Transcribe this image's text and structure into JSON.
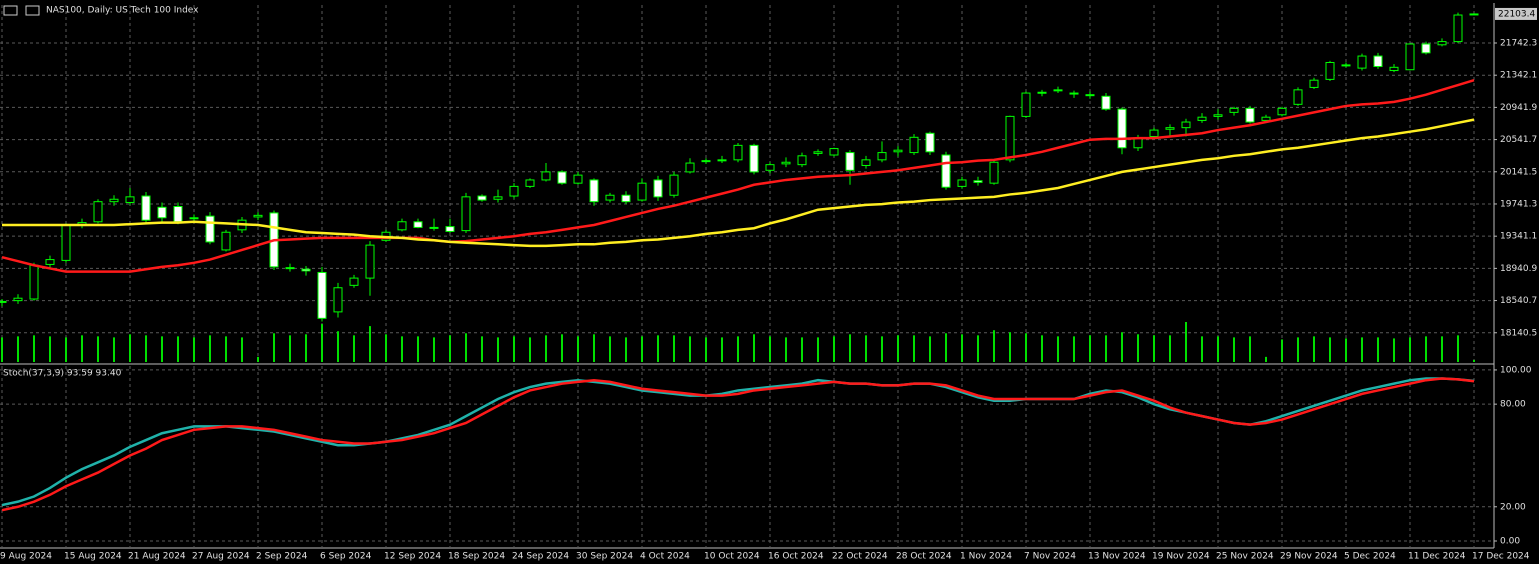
{
  "chart_data": [
    {
      "type": "candlestick",
      "title": "NAS100, Daily: US Tech 100 Index",
      "categories": [
        "9 Aug 2024",
        null,
        null,
        null,
        "15 Aug 2024",
        null,
        null,
        null,
        "21 Aug 2024",
        null,
        null,
        null,
        "27 Aug 2024",
        null,
        null,
        null,
        "2 Sep 2024",
        null,
        null,
        null,
        "6 Sep 2024",
        null,
        null,
        null,
        "12 Sep 2024",
        null,
        null,
        null,
        "18 Sep 2024",
        null,
        null,
        null,
        "24 Sep 2024",
        null,
        null,
        null,
        "30 Sep 2024",
        null,
        null,
        null,
        "4 Oct 2024",
        null,
        null,
        null,
        "10 Oct 2024",
        null,
        null,
        null,
        "16 Oct 2024",
        null,
        null,
        null,
        "22 Oct 2024",
        null,
        null,
        null,
        "28 Oct 2024",
        null,
        null,
        null,
        "1 Nov 2024",
        null,
        null,
        null,
        "7 Nov 2024",
        null,
        null,
        null,
        "13 Nov 2024",
        null,
        null,
        null,
        "19 Nov 2024",
        null,
        null,
        null,
        "25 Nov 2024",
        null,
        null,
        null,
        "29 Nov 2024",
        null,
        null,
        null,
        "5 Dec 2024",
        null,
        null,
        null,
        "11 Dec 2024",
        null,
        null,
        null,
        "17 Dec 2024"
      ],
      "open": [
        18520,
        18540,
        18560,
        18990,
        19040,
        19480,
        19520,
        19770,
        19760,
        19840,
        19700,
        19710,
        19560,
        19590,
        19170,
        19420,
        19580,
        19630,
        18950,
        18930,
        18890,
        18400,
        18730,
        18820,
        19290,
        19420,
        19520,
        19450,
        19460,
        19410,
        19840,
        19800,
        19840,
        19960,
        20040,
        20140,
        20000,
        20040,
        19790,
        19850,
        19790,
        20040,
        19850,
        20140,
        20270,
        20280,
        20290,
        20470,
        20160,
        20240,
        20230,
        20370,
        20350,
        20380,
        20220,
        20290,
        20390,
        20380,
        20620,
        20350,
        19960,
        20030,
        20000,
        20290,
        20830,
        21130,
        21150,
        21120,
        21100,
        21080,
        20920,
        20440,
        20580,
        20670,
        20690,
        20780,
        20830,
        20880,
        20930,
        20780,
        20850,
        20980,
        21190,
        21290,
        21460,
        21430,
        21580,
        21400,
        21410,
        21730,
        21720,
        21760,
        22100
      ],
      "high": [
        18560,
        18620,
        19010,
        19100,
        19500,
        19560,
        19800,
        19850,
        19940,
        19890,
        19760,
        19760,
        19610,
        19640,
        19420,
        19580,
        19640,
        19660,
        19000,
        18970,
        18960,
        18760,
        18860,
        19280,
        19420,
        19560,
        19560,
        19560,
        19560,
        19880,
        19860,
        19920,
        20000,
        20060,
        20250,
        20160,
        20140,
        20060,
        19880,
        19900,
        20060,
        20090,
        20140,
        20310,
        20310,
        20340,
        20500,
        20490,
        20260,
        20320,
        20380,
        20420,
        20440,
        20410,
        20340,
        20520,
        20460,
        20610,
        20640,
        20390,
        20080,
        20080,
        20280,
        20840,
        21140,
        21160,
        21200,
        21150,
        21140,
        21120,
        20940,
        20600,
        20690,
        20730,
        20800,
        20870,
        20920,
        20950,
        20960,
        20850,
        20950,
        21190,
        21310,
        21520,
        21500,
        21610,
        21620,
        21480,
        21740,
        21760,
        21800,
        22120,
        22110
      ],
      "low": [
        18470,
        18500,
        18540,
        18950,
        19010,
        19440,
        19500,
        19720,
        19730,
        19500,
        19520,
        19490,
        19520,
        19240,
        19150,
        19380,
        19540,
        18920,
        18900,
        18850,
        18280,
        18330,
        18700,
        18600,
        19270,
        19400,
        19440,
        19410,
        19380,
        19380,
        19770,
        19760,
        19810,
        19940,
        20020,
        19980,
        19980,
        19720,
        19760,
        19740,
        19770,
        19780,
        19820,
        20120,
        20240,
        20250,
        20260,
        20110,
        20120,
        20200,
        20200,
        20340,
        20330,
        19980,
        20180,
        20260,
        20330,
        20350,
        20350,
        19920,
        19930,
        19970,
        19980,
        20260,
        20810,
        21080,
        21120,
        21060,
        21050,
        20900,
        20360,
        20400,
        20550,
        20580,
        20580,
        20750,
        20790,
        20840,
        20740,
        20760,
        20830,
        20960,
        21170,
        21270,
        21440,
        21400,
        21420,
        21380,
        21400,
        21600,
        21700,
        21740,
        22090
      ],
      "close": [
        18530,
        18570,
        18980,
        19050,
        19480,
        19510,
        19770,
        19800,
        19830,
        19540,
        19570,
        19520,
        19570,
        19270,
        19390,
        19540,
        19600,
        18960,
        18940,
        18910,
        18320,
        18700,
        18820,
        19230,
        19390,
        19520,
        19450,
        19440,
        19400,
        19830,
        19790,
        19830,
        19960,
        20040,
        20140,
        20000,
        20100,
        19770,
        19850,
        19770,
        20000,
        19830,
        20100,
        20250,
        20280,
        20290,
        20470,
        20140,
        20230,
        20260,
        20340,
        20390,
        20430,
        20160,
        20290,
        20380,
        20410,
        20570,
        20390,
        19950,
        20040,
        20010,
        20260,
        20830,
        21120,
        21130,
        21160,
        21110,
        21090,
        20920,
        20440,
        20560,
        20660,
        20690,
        20760,
        20820,
        20850,
        20930,
        20760,
        20820,
        20930,
        21160,
        21280,
        21500,
        21470,
        21580,
        21450,
        21440,
        21730,
        21620,
        21760,
        22090,
        22103.4
      ],
      "volume": [
        120000,
        125000,
        130000,
        125000,
        120000,
        130000,
        125000,
        120000,
        135000,
        130000,
        125000,
        125000,
        120000,
        130000,
        125000,
        120000,
        25000,
        140000,
        130000,
        135000,
        185000,
        150000,
        130000,
        175000,
        135000,
        125000,
        125000,
        120000,
        130000,
        140000,
        125000,
        120000,
        125000,
        120000,
        130000,
        135000,
        125000,
        135000,
        125000,
        120000,
        125000,
        130000,
        130000,
        125000,
        120000,
        120000,
        125000,
        135000,
        125000,
        120000,
        120000,
        120000,
        125000,
        135000,
        130000,
        125000,
        130000,
        130000,
        125000,
        140000,
        135000,
        130000,
        155000,
        145000,
        140000,
        130000,
        125000,
        125000,
        130000,
        130000,
        145000,
        135000,
        130000,
        130000,
        195000,
        125000,
        125000,
        120000,
        125000,
        25000,
        110000,
        120000,
        125000,
        120000,
        115000,
        120000,
        120000,
        115000,
        120000,
        125000,
        125000,
        130000,
        10000
      ],
      "wick_color": "#00ff00",
      "up_color": "#000000",
      "down_color": "#ffffff",
      "volume_color": "#00e000",
      "series": [
        {
          "color": "#ff1a1a",
          "values": [
            19080,
            19030,
            18980,
            18940,
            18900,
            18900,
            18900,
            18900,
            18900,
            18930,
            18960,
            18980,
            19010,
            19050,
            19110,
            19170,
            19230,
            19290,
            19300,
            19310,
            19320,
            19320,
            19320,
            19320,
            19320,
            19320,
            19320,
            19290,
            19270,
            19280,
            19300,
            19320,
            19340,
            19370,
            19390,
            19420,
            19450,
            19480,
            19530,
            19580,
            19630,
            19680,
            19720,
            19770,
            19820,
            19870,
            19920,
            19980,
            20010,
            20040,
            20060,
            20080,
            20090,
            20100,
            20120,
            20140,
            20160,
            20190,
            20220,
            20250,
            20260,
            20280,
            20290,
            20320,
            20350,
            20390,
            20440,
            20490,
            20540,
            20550,
            20550,
            20560,
            20560,
            20580,
            20600,
            20620,
            20660,
            20690,
            20720,
            20760,
            20800,
            20840,
            20880,
            20920,
            20960,
            20980,
            20990,
            21010,
            21050,
            21100,
            21160,
            21220,
            21280
          ]
        },
        {
          "color": "#ffee22",
          "values": [
            19480,
            19480,
            19480,
            19480,
            19480,
            19480,
            19480,
            19480,
            19490,
            19500,
            19510,
            19510,
            19520,
            19510,
            19500,
            19490,
            19480,
            19450,
            19420,
            19390,
            19380,
            19370,
            19360,
            19340,
            19330,
            19320,
            19300,
            19290,
            19270,
            19260,
            19250,
            19240,
            19230,
            19220,
            19220,
            19230,
            19240,
            19240,
            19260,
            19270,
            19290,
            19300,
            19320,
            19340,
            19370,
            19390,
            19420,
            19440,
            19500,
            19550,
            19610,
            19670,
            19690,
            19710,
            19730,
            19740,
            19760,
            19770,
            19790,
            19800,
            19810,
            19820,
            19830,
            19860,
            19880,
            19910,
            19940,
            19990,
            20040,
            20090,
            20140,
            20170,
            20200,
            20230,
            20260,
            20290,
            20310,
            20340,
            20360,
            20390,
            20420,
            20440,
            20470,
            20500,
            20530,
            20560,
            20580,
            20610,
            20640,
            20670,
            20710,
            20750,
            20790
          ]
        }
      ],
      "ylim": [
        17777.1,
        22214.6
      ],
      "yticks": [
        18140.5,
        18540.7,
        18940.9,
        19341.1,
        19741.3,
        20141.5,
        20541.7,
        20941.9,
        21342.1,
        21742.3
      ],
      "grid": true
    },
    {
      "type": "line",
      "title": "Stoch(37,3,9) 93.59 93.40",
      "series": [
        {
          "color": "#20b2aa",
          "values": [
            21,
            23,
            26,
            31,
            37,
            42,
            46,
            50,
            55,
            59,
            63,
            65,
            67,
            67,
            67,
            66,
            65,
            64,
            62,
            60,
            58,
            56,
            56,
            57,
            58,
            60,
            62,
            65,
            68,
            73,
            78,
            83,
            87,
            90,
            92,
            93,
            94,
            93,
            92,
            90,
            88,
            87,
            86,
            85,
            85,
            86,
            88,
            89,
            90,
            91,
            92,
            94,
            93,
            92,
            92,
            91,
            91,
            92,
            92,
            90,
            87,
            84,
            82,
            82,
            83,
            83,
            83,
            83,
            86,
            88,
            87,
            84,
            80,
            77,
            75,
            73,
            71,
            69,
            68,
            70,
            73,
            76,
            79,
            82,
            85,
            88,
            90,
            92,
            94,
            95,
            95,
            94.5,
            93.59
          ]
        },
        {
          "color": "#ff1a1a",
          "values": [
            18,
            20,
            23,
            27,
            32,
            36,
            40,
            45,
            50,
            54,
            59,
            62,
            65,
            66,
            67,
            67,
            66,
            65,
            63,
            61,
            59,
            58,
            57,
            57,
            58,
            59,
            61,
            63,
            66,
            69,
            74,
            79,
            84,
            88,
            90,
            92,
            93,
            94,
            93,
            91,
            89,
            88,
            87,
            86,
            85,
            85,
            86,
            88,
            89,
            90,
            91,
            92,
            93,
            92,
            92,
            91,
            91,
            92,
            92,
            91,
            88,
            85,
            83,
            83,
            83,
            83,
            83,
            83,
            85,
            87,
            88,
            85,
            82,
            78,
            75,
            73,
            71,
            69,
            68,
            69,
            71,
            74,
            77,
            80,
            83,
            86,
            88,
            90,
            92,
            94,
            95,
            94.5,
            93.4
          ]
        }
      ],
      "ylim": [
        -4.1,
        102.3
      ],
      "yticks": [
        {
          "value": 0,
          "label": "0.00"
        },
        {
          "value": 20,
          "label": "20.00"
        },
        {
          "value": 80,
          "label": "80.00"
        },
        {
          "value": 100,
          "label": "100.00"
        }
      ],
      "grid": true
    }
  ]
}
